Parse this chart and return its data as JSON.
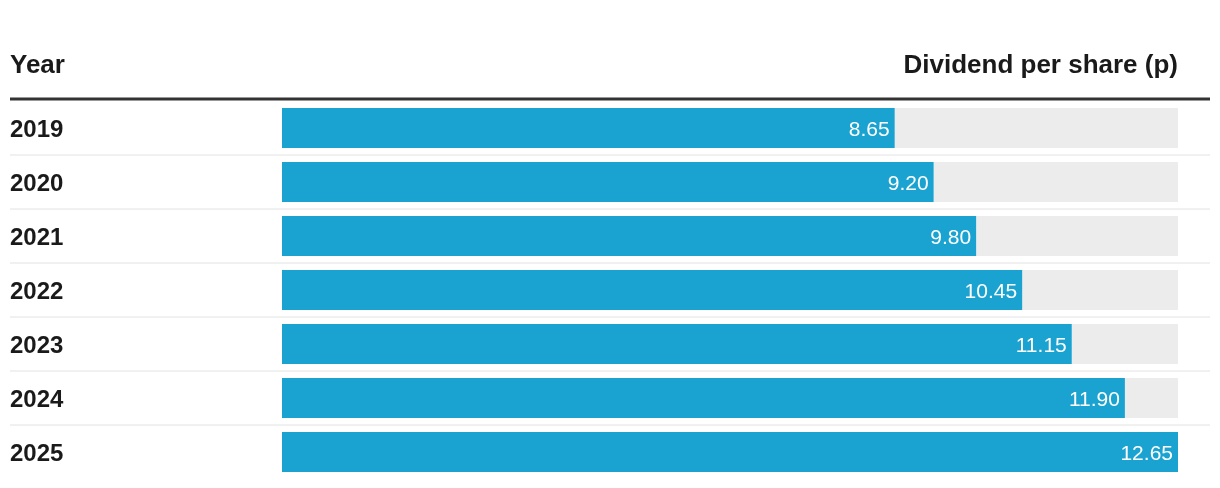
{
  "chart_data": {
    "type": "bar",
    "orientation": "horizontal",
    "xlabel": "Dividend per share (p)",
    "ylabel": "Year",
    "categories": [
      "2019",
      "2020",
      "2021",
      "2022",
      "2023",
      "2024",
      "2025"
    ],
    "values": [
      8.65,
      9.2,
      9.8,
      10.45,
      11.15,
      11.9,
      12.65
    ],
    "value_labels": [
      "8.65",
      "9.20",
      "9.80",
      "10.45",
      "11.15",
      "11.90",
      "12.65"
    ],
    "color": "#1aa3d0"
  }
}
